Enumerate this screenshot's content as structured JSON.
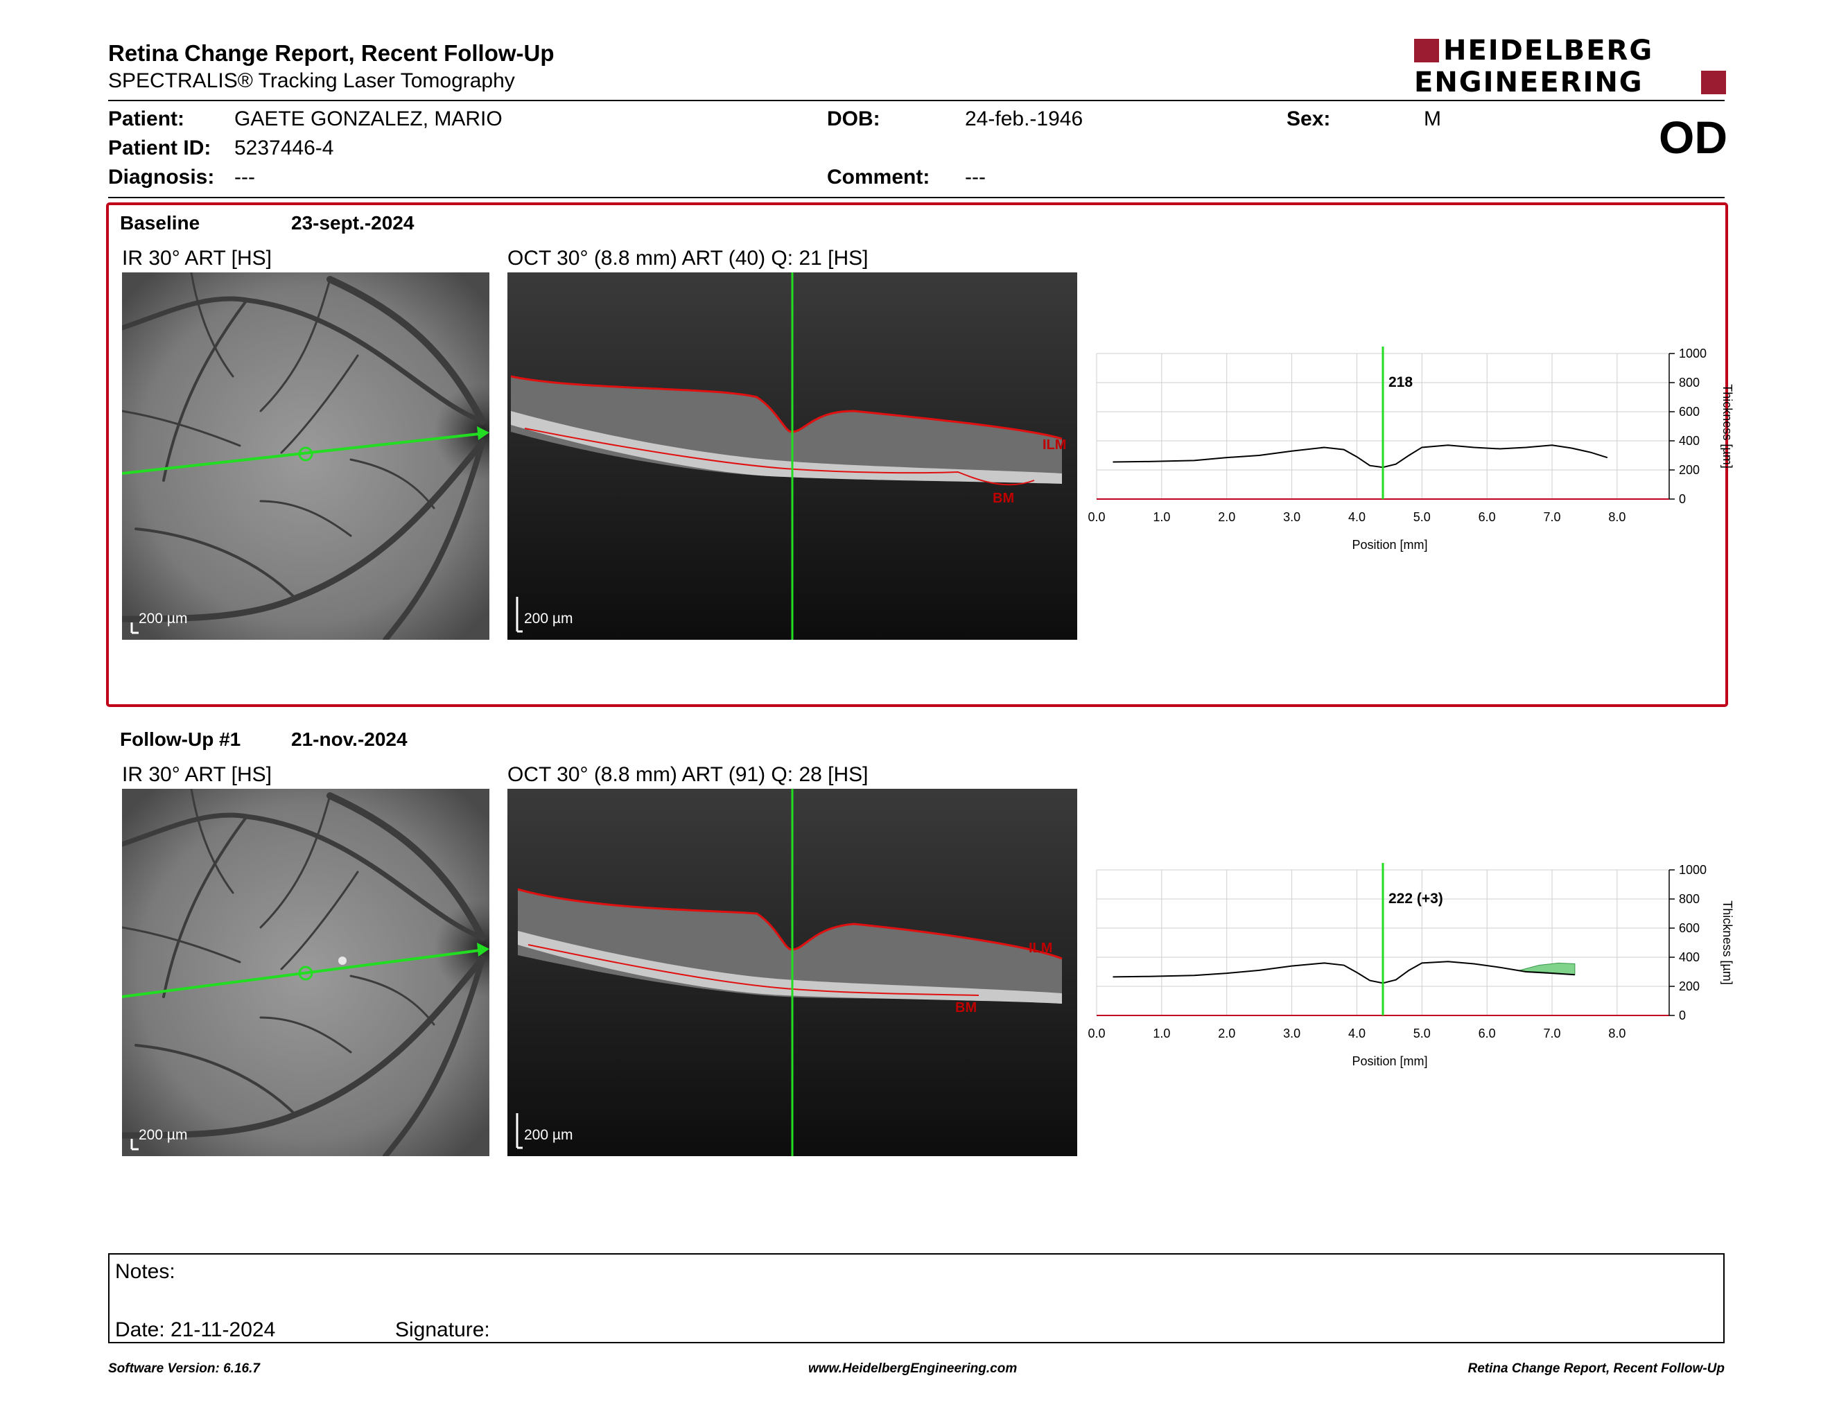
{
  "header": {
    "title": "Retina Change Report, Recent Follow-Up",
    "subtitle": "SPECTRALIS® Tracking Laser Tomography",
    "logo_line1": "HEIDELBERG",
    "logo_line2": "ENGINEERING"
  },
  "patient": {
    "patient_label": "Patient:",
    "patient_name": "GAETE GONZALEZ, MARIO",
    "patient_id_label": "Patient ID:",
    "patient_id": "5237446-4",
    "diagnosis_label": "Diagnosis:",
    "diagnosis": "---",
    "dob_label": "DOB:",
    "dob": "24-feb.-1946",
    "comment_label": "Comment:",
    "comment": "---",
    "sex_label": "Sex:",
    "sex": "M",
    "eye": "OD"
  },
  "baseline": {
    "label": "Baseline",
    "date": "23-sept.-2024",
    "ir_label": "IR 30° ART [HS]",
    "oct_label": "OCT 30° (8.8 mm) ART (40) Q: 21 [HS]",
    "scale_ir": "200 µm",
    "scale_oct": "200 µm",
    "ilm": "ILM",
    "bm": "BM"
  },
  "followup": {
    "label": "Follow-Up #1",
    "date": "21-nov.-2024",
    "ir_label": "IR 30° ART [HS]",
    "oct_label": "OCT 30° (8.8 mm) ART (91) Q: 28 [HS]",
    "scale_ir": "200 µm",
    "scale_oct": "200 µm",
    "ilm": "ILM",
    "bm": "BM"
  },
  "chart_data": [
    {
      "type": "line",
      "xlabel": "Position [mm]",
      "ylabel": "Thickness [µm]",
      "xlim": [
        0,
        8.8
      ],
      "ylim": [
        0,
        1000
      ],
      "xticks": [
        "0.0",
        "1.0",
        "2.0",
        "3.0",
        "4.0",
        "5.0",
        "6.0",
        "7.0",
        "8.0"
      ],
      "yticks": [
        "0",
        "200",
        "400",
        "600",
        "800",
        "1000"
      ],
      "grid": true,
      "cursor_x": 4.4,
      "cursor_label": "218",
      "x": [
        0.25,
        0.8,
        1.5,
        2.0,
        2.5,
        3.0,
        3.5,
        3.8,
        4.0,
        4.2,
        4.4,
        4.6,
        4.8,
        5.0,
        5.4,
        5.8,
        6.2,
        6.6,
        7.0,
        7.3,
        7.6,
        7.85
      ],
      "y": [
        255,
        258,
        265,
        285,
        300,
        330,
        355,
        340,
        290,
        230,
        218,
        240,
        300,
        355,
        370,
        355,
        345,
        355,
        370,
        350,
        320,
        285
      ]
    },
    {
      "type": "line",
      "xlabel": "Position [mm]",
      "ylabel": "Thickness [µm]",
      "xlim": [
        0,
        8.8
      ],
      "ylim": [
        0,
        1000
      ],
      "xticks": [
        "0.0",
        "1.0",
        "2.0",
        "3.0",
        "4.0",
        "5.0",
        "6.0",
        "7.0",
        "8.0"
      ],
      "yticks": [
        "0",
        "200",
        "400",
        "600",
        "800",
        "1000"
      ],
      "grid": true,
      "cursor_x": 4.4,
      "cursor_label": "222 (+3)",
      "x": [
        0.25,
        0.8,
        1.5,
        2.0,
        2.5,
        3.0,
        3.5,
        3.8,
        4.0,
        4.2,
        4.4,
        4.6,
        4.8,
        5.0,
        5.4,
        5.8,
        6.2,
        6.6,
        7.0,
        7.35
      ],
      "y": [
        265,
        268,
        275,
        290,
        310,
        340,
        360,
        345,
        295,
        240,
        222,
        245,
        310,
        360,
        370,
        355,
        330,
        300,
        290,
        280
      ],
      "increase_band": {
        "x": [
          6.5,
          6.8,
          7.1,
          7.35
        ],
        "upper": [
          310,
          345,
          360,
          355
        ],
        "lower": [
          305,
          300,
          290,
          280
        ],
        "color": "#7fd38a"
      }
    }
  ],
  "notes": {
    "label": "Notes:",
    "date_label": "Date: 21-11-2024",
    "signature_label": "Signature:"
  },
  "footer": {
    "left": "Software Version: 6.16.7",
    "center": "www.HeidelbergEngineering.com",
    "right": "Retina Change Report, Recent Follow-Up"
  }
}
